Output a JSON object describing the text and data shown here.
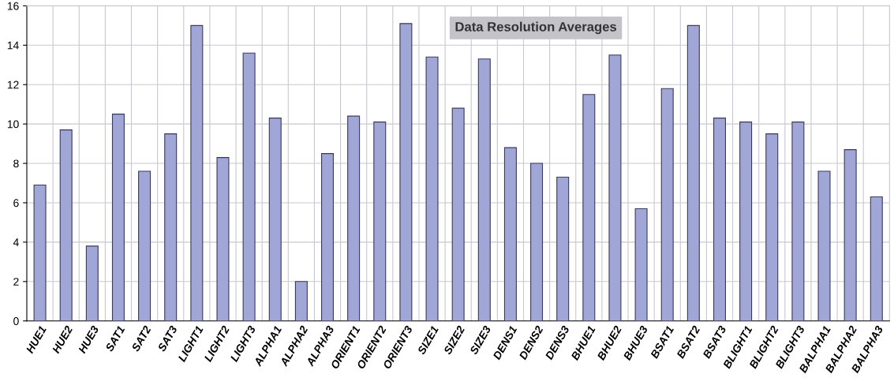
{
  "chart_data": {
    "type": "bar",
    "title": "Data Resolution Averages",
    "categories": [
      "HUE1",
      "HUE2",
      "HUE3",
      "SAT1",
      "SAT2",
      "SAT3",
      "LIGHT1",
      "LIGHT2",
      "LIGHT3",
      "ALPHA1",
      "ALPHA2",
      "ALPHA3",
      "ORIENT1",
      "ORIENT2",
      "ORIENT3",
      "SIZE1",
      "SIZE2",
      "SIZE3",
      "DENS1",
      "DENS2",
      "DENS3",
      "BHUE1",
      "BHUE2",
      "BHUE3",
      "BSAT1",
      "BSAT2",
      "BSAT3",
      "BLIGHT1",
      "BLIGHT2",
      "BLIGHT3",
      "BALPHA1",
      "BALPHA2",
      "BALPHA3"
    ],
    "values": [
      6.9,
      9.7,
      3.8,
      10.5,
      7.6,
      9.5,
      15.0,
      8.3,
      13.6,
      10.3,
      2.0,
      8.5,
      10.4,
      10.1,
      15.1,
      13.4,
      10.8,
      13.3,
      8.8,
      8.0,
      7.3,
      11.5,
      13.5,
      5.7,
      11.8,
      15.0,
      10.3,
      10.1,
      9.5,
      10.1,
      7.6,
      8.7,
      6.3
    ],
    "color": "#a0a6d6",
    "ylim": [
      0,
      16
    ],
    "yticks": [
      0,
      2,
      4,
      6,
      8,
      10,
      12,
      14,
      16
    ],
    "grid": true
  }
}
